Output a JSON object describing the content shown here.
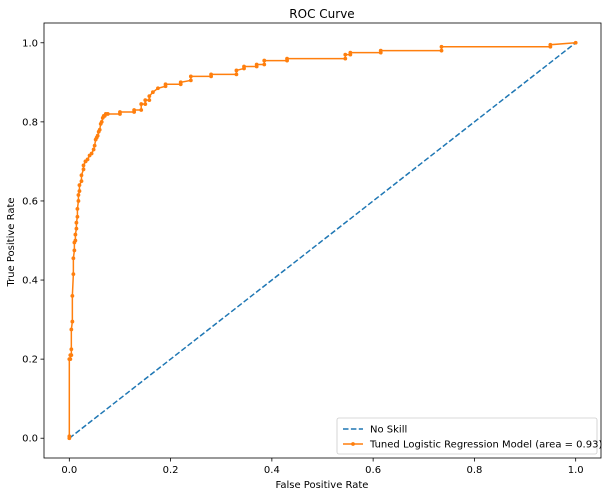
{
  "chart_data": {
    "type": "line",
    "title": "ROC Curve",
    "xlabel": "False Positive Rate",
    "ylabel": "True Positive Rate",
    "xlim": [
      -0.05,
      1.05
    ],
    "ylim": [
      -0.05,
      1.05
    ],
    "xticks": [
      0.0,
      0.2,
      0.4,
      0.6,
      0.8,
      1.0
    ],
    "xtick_labels": [
      "0.0",
      "0.2",
      "0.4",
      "0.6",
      "0.8",
      "1.0"
    ],
    "yticks": [
      0.0,
      0.2,
      0.4,
      0.6,
      0.8,
      1.0
    ],
    "ytick_labels": [
      "0.0",
      "0.2",
      "0.4",
      "0.6",
      "0.8",
      "1.0"
    ],
    "grid": false,
    "legend_position": "lower-right",
    "series": [
      {
        "name": "No Skill",
        "style": "dashed",
        "color": "#1f77b4",
        "marker": "none",
        "x": [
          0.0,
          1.0
        ],
        "y": [
          0.0,
          1.0
        ]
      },
      {
        "name": "Tuned Logistic Regression Model (area = 0.93)",
        "style": "solid",
        "color": "#ff7f0e",
        "marker": "dot",
        "x": [
          0.0,
          0.0,
          0.0,
          0.002,
          0.002,
          0.004,
          0.004,
          0.004,
          0.006,
          0.006,
          0.008,
          0.008,
          0.01,
          0.01,
          0.012,
          0.012,
          0.014,
          0.014,
          0.016,
          0.016,
          0.018,
          0.018,
          0.02,
          0.02,
          0.024,
          0.024,
          0.028,
          0.028,
          0.032,
          0.032,
          0.036,
          0.04,
          0.044,
          0.048,
          0.05,
          0.052,
          0.054,
          0.056,
          0.058,
          0.06,
          0.062,
          0.064,
          0.066,
          0.068,
          0.07,
          0.072,
          0.076,
          0.1,
          0.1,
          0.128,
          0.128,
          0.142,
          0.142,
          0.15,
          0.15,
          0.158,
          0.158,
          0.165,
          0.175,
          0.19,
          0.19,
          0.22,
          0.22,
          0.24,
          0.24,
          0.28,
          0.28,
          0.33,
          0.33,
          0.345,
          0.345,
          0.37,
          0.37,
          0.385,
          0.385,
          0.43,
          0.43,
          0.545,
          0.545,
          0.555,
          0.555,
          0.615,
          0.615,
          0.735,
          0.735,
          0.95,
          0.95,
          1.0
        ],
        "y": [
          0.0,
          0.005,
          0.2,
          0.2,
          0.21,
          0.21,
          0.225,
          0.275,
          0.295,
          0.36,
          0.415,
          0.455,
          0.475,
          0.495,
          0.5,
          0.515,
          0.53,
          0.545,
          0.56,
          0.58,
          0.6,
          0.615,
          0.625,
          0.64,
          0.65,
          0.665,
          0.68,
          0.69,
          0.7,
          0.7,
          0.705,
          0.715,
          0.72,
          0.73,
          0.74,
          0.755,
          0.76,
          0.765,
          0.775,
          0.78,
          0.795,
          0.8,
          0.81,
          0.815,
          0.815,
          0.82,
          0.82,
          0.82,
          0.825,
          0.825,
          0.83,
          0.83,
          0.845,
          0.845,
          0.855,
          0.855,
          0.865,
          0.875,
          0.885,
          0.89,
          0.895,
          0.895,
          0.9,
          0.905,
          0.915,
          0.915,
          0.92,
          0.92,
          0.93,
          0.935,
          0.94,
          0.94,
          0.945,
          0.945,
          0.955,
          0.955,
          0.96,
          0.96,
          0.97,
          0.97,
          0.975,
          0.975,
          0.98,
          0.98,
          0.99,
          0.99,
          0.995,
          1.0
        ]
      }
    ]
  }
}
